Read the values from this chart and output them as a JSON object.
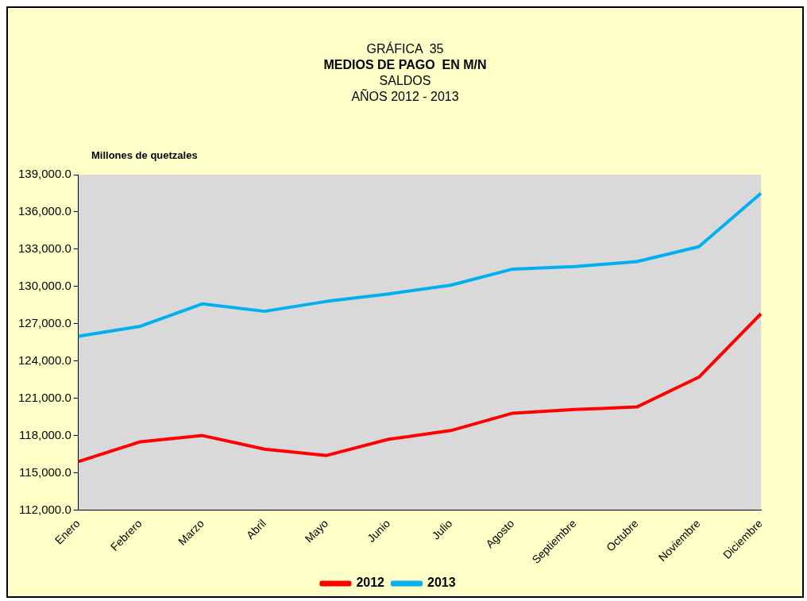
{
  "chart_data": {
    "type": "line",
    "annotations": [
      "GRÁFICA  35"
    ],
    "title": "MEDIOS DE PAGO  EN M/N",
    "subtitle": "SALDOS\nAÑOS 2012 - 2013",
    "ylabel": "Millones de quetzales",
    "categories": [
      "Enero",
      "Febrero",
      "Marzo",
      "Abril",
      "Mayo",
      "Junio",
      "Julio",
      "Agosto",
      "Septiembre",
      "Octubre",
      "Noviembre",
      "Diciembre"
    ],
    "series": [
      {
        "name": "2012",
        "color": "#ff0000",
        "values": [
          115900,
          117500,
          118000,
          116900,
          116400,
          117700,
          118400,
          119800,
          120100,
          120300,
          122700,
          127800
        ]
      },
      {
        "name": "2013",
        "color": "#00b0f0",
        "values": [
          126000,
          126800,
          128600,
          128000,
          128800,
          129400,
          130100,
          131400,
          131600,
          132000,
          133200,
          137500
        ]
      }
    ],
    "ylim": [
      112000,
      139000
    ],
    "yticks": [
      {
        "value": 112000,
        "label": "112,000.0"
      },
      {
        "value": 115000,
        "label": "115,000.0"
      },
      {
        "value": 118000,
        "label": "118,000.0"
      },
      {
        "value": 121000,
        "label": "121,000.0"
      },
      {
        "value": 124000,
        "label": "124,000.0"
      },
      {
        "value": 127000,
        "label": "127,000.0"
      },
      {
        "value": 130000,
        "label": "130,000.0"
      },
      {
        "value": 133000,
        "label": "133,000.0"
      },
      {
        "value": 136000,
        "label": "136,000.0"
      },
      {
        "value": 139000,
        "label": "139,000.0"
      }
    ],
    "legend": "bottom",
    "marker": "none",
    "line_style": "solid"
  }
}
